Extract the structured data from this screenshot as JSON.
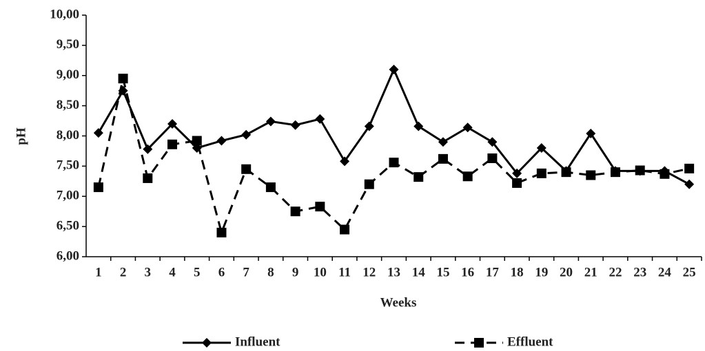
{
  "chart_data": {
    "type": "line",
    "x_label": "Weeks",
    "y_label": "pH",
    "categories": [
      "1",
      "2",
      "3",
      "4",
      "5",
      "6",
      "7",
      "8",
      "9",
      "10",
      "11",
      "12",
      "13",
      "14",
      "15",
      "16",
      "17",
      "18",
      "19",
      "20",
      "21",
      "22",
      "23",
      "24",
      "25"
    ],
    "series": [
      {
        "name": "Influent",
        "color": "#000000",
        "marker": "diamond",
        "dash": false,
        "values": [
          8.05,
          8.75,
          7.78,
          8.2,
          7.8,
          7.92,
          8.02,
          8.24,
          8.18,
          8.28,
          7.58,
          8.16,
          9.1,
          8.16,
          7.9,
          8.14,
          7.9,
          7.38,
          7.8,
          7.42,
          8.04,
          7.42,
          7.42,
          7.42,
          7.2
        ]
      },
      {
        "name": "Effluent",
        "color": "#000000",
        "marker": "square",
        "dash": true,
        "values": [
          7.15,
          8.95,
          7.3,
          7.86,
          7.92,
          6.4,
          7.45,
          7.15,
          6.75,
          6.83,
          6.45,
          7.2,
          7.56,
          7.32,
          7.62,
          7.33,
          7.63,
          7.22,
          7.38,
          7.4,
          7.35,
          7.4,
          7.43,
          7.37,
          7.46
        ]
      }
    ],
    "ylim": [
      6,
      10
    ],
    "yticks": [
      {
        "value": 6,
        "label": "6,00"
      },
      {
        "value": 6.5,
        "label": "6,50"
      },
      {
        "value": 7,
        "label": "7,00"
      },
      {
        "value": 7.5,
        "label": "7,50"
      },
      {
        "value": 8,
        "label": "8,00"
      },
      {
        "value": 8.5,
        "label": "8,50"
      },
      {
        "value": 9,
        "label": "9,00"
      },
      {
        "value": 9.5,
        "label": "9,50"
      },
      {
        "value": 10,
        "label": "10,00"
      }
    ],
    "legend_position": "bottom"
  }
}
